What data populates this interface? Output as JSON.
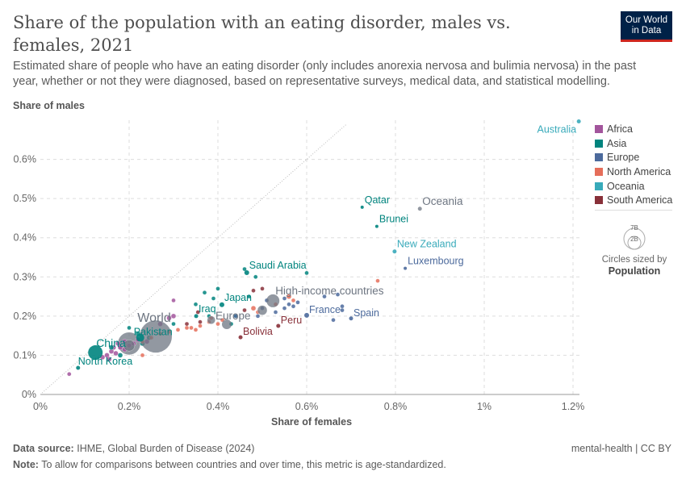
{
  "header": {
    "title": "Share of the population with an eating disorder, males vs. females, 2021",
    "subtitle": "Estimated share of people who have an eating disorder (only includes anorexia nervosa and bulimia nervosa) in the past year, whether or not they were diagnosed, based on representative surveys, medical data, and statistical modelling.",
    "logo": "Our World in Data"
  },
  "colors": {
    "Africa": "#a2559c",
    "Asia": "#00847e",
    "Europe": "#4c6a9c",
    "North America": "#e56e5a",
    "Oceania": "#38aaba",
    "South America": "#883039",
    "Aggregate": "#6d7581"
  },
  "legend": {
    "items": [
      "Africa",
      "Asia",
      "Europe",
      "North America",
      "Oceania",
      "South America"
    ],
    "size_title": "Circles sized by",
    "size_var": "Population",
    "size_big": "7B",
    "size_small": "2B"
  },
  "footer": {
    "source_label": "Data source:",
    "source": "IHME, Global Burden of Disease (2024)",
    "note_label": "Note:",
    "note": "To allow for comparisons between countries and over time, this metric is age-standardized.",
    "right": "mental-health | CC BY"
  },
  "chart_data": {
    "type": "scatter",
    "title": "Share of the population with an eating disorder, males vs. females, 2021",
    "xlabel": "Share of females",
    "ylabel": "Share of males",
    "xlim": [
      0,
      1.2
    ],
    "ylim": [
      0,
      0.7
    ],
    "xticks": [
      "0%",
      "0.2%",
      "0.4%",
      "0.6%",
      "0.8%",
      "1%",
      "1.2%"
    ],
    "yticks": [
      "0%",
      "0.1%",
      "0.2%",
      "0.3%",
      "0.4%",
      "0.5%",
      "0.6%"
    ],
    "grid": true,
    "legend_position": "right",
    "labeled": [
      {
        "name": "Australia",
        "x": 1.213,
        "y": 0.697,
        "region": "Oceania",
        "r": 2.5
      },
      {
        "name": "Qatar",
        "x": 0.725,
        "y": 0.478,
        "region": "Asia",
        "r": 2
      },
      {
        "name": "Oceania",
        "x": 0.855,
        "y": 0.474,
        "region": "Aggregate",
        "r": 2.5
      },
      {
        "name": "Brunei",
        "x": 0.758,
        "y": 0.429,
        "region": "Asia",
        "r": 2
      },
      {
        "name": "New Zealand",
        "x": 0.798,
        "y": 0.365,
        "region": "Oceania",
        "r": 2.5
      },
      {
        "name": "Luxembourg",
        "x": 0.822,
        "y": 0.322,
        "region": "Europe",
        "r": 2
      },
      {
        "name": "Saudi Arabia",
        "x": 0.465,
        "y": 0.311,
        "region": "Asia",
        "r": 3
      },
      {
        "name": "High-income countries",
        "x": 0.524,
        "y": 0.239,
        "region": "Aggregate",
        "r": 8
      },
      {
        "name": "France",
        "x": 0.6,
        "y": 0.202,
        "region": "Europe",
        "r": 3
      },
      {
        "name": "Spain",
        "x": 0.7,
        "y": 0.194,
        "region": "Europe",
        "r": 2.5
      },
      {
        "name": "Japan",
        "x": 0.409,
        "y": 0.229,
        "region": "Asia",
        "r": 3
      },
      {
        "name": "Iraq",
        "x": 0.351,
        "y": 0.2,
        "region": "Asia",
        "r": 2.5
      },
      {
        "name": "Europe",
        "x": 0.42,
        "y": 0.179,
        "region": "Aggregate",
        "r": 6
      },
      {
        "name": "Peru",
        "x": 0.536,
        "y": 0.175,
        "region": "South America",
        "r": 2.5
      },
      {
        "name": "Bolivia",
        "x": 0.451,
        "y": 0.146,
        "region": "South America",
        "r": 2.5
      },
      {
        "name": "World",
        "x": 0.26,
        "y": 0.148,
        "region": "Aggregate",
        "r": 20
      },
      {
        "name": "Pakistan",
        "x": 0.225,
        "y": 0.145,
        "region": "Asia",
        "r": 5
      },
      {
        "name": "China",
        "x": 0.124,
        "y": 0.107,
        "region": "Asia",
        "r": 9
      },
      {
        "name": "North Korea",
        "x": 0.085,
        "y": 0.068,
        "region": "Asia",
        "r": 2.5
      }
    ],
    "points": [
      [
        0.2,
        0.13,
        "Aggregate",
        14
      ],
      [
        0.065,
        0.052,
        "Africa",
        2.5
      ],
      [
        0.15,
        0.1,
        "Africa",
        3
      ],
      [
        0.16,
        0.11,
        "Africa",
        3
      ],
      [
        0.17,
        0.105,
        "Africa",
        3
      ],
      [
        0.18,
        0.12,
        "Africa",
        3
      ],
      [
        0.19,
        0.115,
        "Africa",
        3
      ],
      [
        0.2,
        0.125,
        "Africa",
        3
      ],
      [
        0.21,
        0.13,
        "Africa",
        3
      ],
      [
        0.22,
        0.14,
        "Africa",
        3
      ],
      [
        0.14,
        0.095,
        "Africa",
        3
      ],
      [
        0.155,
        0.09,
        "Africa",
        3
      ],
      [
        0.175,
        0.13,
        "Africa",
        3
      ],
      [
        0.24,
        0.135,
        "Africa",
        3
      ],
      [
        0.3,
        0.2,
        "Africa",
        3
      ],
      [
        0.3,
        0.24,
        "Africa",
        2.5
      ],
      [
        0.27,
        0.18,
        "Africa",
        3
      ],
      [
        0.29,
        0.195,
        "Africa",
        3
      ],
      [
        0.19,
        0.135,
        "Africa",
        3
      ],
      [
        0.165,
        0.12,
        "Africa",
        3
      ],
      [
        0.2,
        0.17,
        "Asia",
        2.5
      ],
      [
        0.22,
        0.155,
        "Asia",
        3
      ],
      [
        0.18,
        0.1,
        "Asia",
        3
      ],
      [
        0.16,
        0.12,
        "Asia",
        3
      ],
      [
        0.23,
        0.13,
        "Asia",
        3
      ],
      [
        0.245,
        0.145,
        "Asia",
        3
      ],
      [
        0.3,
        0.18,
        "Asia",
        2.5
      ],
      [
        0.35,
        0.23,
        "Asia",
        2.5
      ],
      [
        0.37,
        0.26,
        "Asia",
        2.5
      ],
      [
        0.39,
        0.245,
        "Asia",
        2.5
      ],
      [
        0.4,
        0.27,
        "Asia",
        2.5
      ],
      [
        0.46,
        0.32,
        "Asia",
        2.5
      ],
      [
        0.485,
        0.3,
        "Asia",
        2.5
      ],
      [
        0.6,
        0.31,
        "Asia",
        2.5
      ],
      [
        0.47,
        0.25,
        "Asia",
        2.5
      ],
      [
        0.44,
        0.2,
        "Asia",
        2.5
      ],
      [
        0.43,
        0.18,
        "Asia",
        2.5
      ],
      [
        0.38,
        0.2,
        "Asia",
        2.5
      ],
      [
        0.23,
        0.135,
        "North America",
        2.5
      ],
      [
        0.25,
        0.145,
        "North America",
        2.5
      ],
      [
        0.27,
        0.155,
        "North America",
        2.5
      ],
      [
        0.29,
        0.16,
        "North America",
        2.5
      ],
      [
        0.31,
        0.165,
        "North America",
        2.5
      ],
      [
        0.33,
        0.17,
        "North America",
        2.5
      ],
      [
        0.34,
        0.17,
        "North America",
        2.5
      ],
      [
        0.35,
        0.165,
        "North America",
        2.5
      ],
      [
        0.36,
        0.175,
        "North America",
        2.5
      ],
      [
        0.38,
        0.185,
        "North America",
        2.5
      ],
      [
        0.385,
        0.195,
        "North America",
        2.5
      ],
      [
        0.4,
        0.18,
        "North America",
        2.5
      ],
      [
        0.41,
        0.19,
        "North America",
        2.5
      ],
      [
        0.48,
        0.22,
        "North America",
        3
      ],
      [
        0.49,
        0.21,
        "North America",
        2.5
      ],
      [
        0.53,
        0.23,
        "North America",
        2.5
      ],
      [
        0.56,
        0.25,
        "North America",
        3
      ],
      [
        0.57,
        0.24,
        "North America",
        2.5
      ],
      [
        0.76,
        0.29,
        "North America",
        2.5
      ],
      [
        0.23,
        0.1,
        "North America",
        2.5
      ],
      [
        0.44,
        0.2,
        "Europe",
        2.5
      ],
      [
        0.5,
        0.22,
        "Europe",
        2.5
      ],
      [
        0.51,
        0.24,
        "Europe",
        2.5
      ],
      [
        0.55,
        0.22,
        "Europe",
        2.5
      ],
      [
        0.56,
        0.23,
        "Europe",
        2.5
      ],
      [
        0.57,
        0.225,
        "Europe",
        2.5
      ],
      [
        0.55,
        0.245,
        "Europe",
        2.5
      ],
      [
        0.58,
        0.235,
        "Europe",
        2.5
      ],
      [
        0.64,
        0.25,
        "Europe",
        2.5
      ],
      [
        0.67,
        0.255,
        "Europe",
        2.5
      ],
      [
        0.68,
        0.225,
        "Europe",
        2.5
      ],
      [
        0.68,
        0.215,
        "Europe",
        2.5
      ],
      [
        0.66,
        0.19,
        "Europe",
        2.5
      ],
      [
        0.53,
        0.21,
        "Europe",
        2.5
      ],
      [
        0.49,
        0.2,
        "Europe",
        2.5
      ],
      [
        0.355,
        0.21,
        "South America",
        2.5
      ],
      [
        0.36,
        0.185,
        "South America",
        2.5
      ],
      [
        0.48,
        0.265,
        "South America",
        2.5
      ],
      [
        0.46,
        0.215,
        "South America",
        2.5
      ],
      [
        0.5,
        0.27,
        "South America",
        2.5
      ],
      [
        0.33,
        0.18,
        "South America",
        2.5
      ],
      [
        0.5,
        0.215,
        "Aggregate",
        6
      ],
      [
        0.385,
        0.19,
        "Aggregate",
        5
      ],
      [
        0.2,
        0.125,
        "Aggregate",
        7
      ]
    ]
  }
}
